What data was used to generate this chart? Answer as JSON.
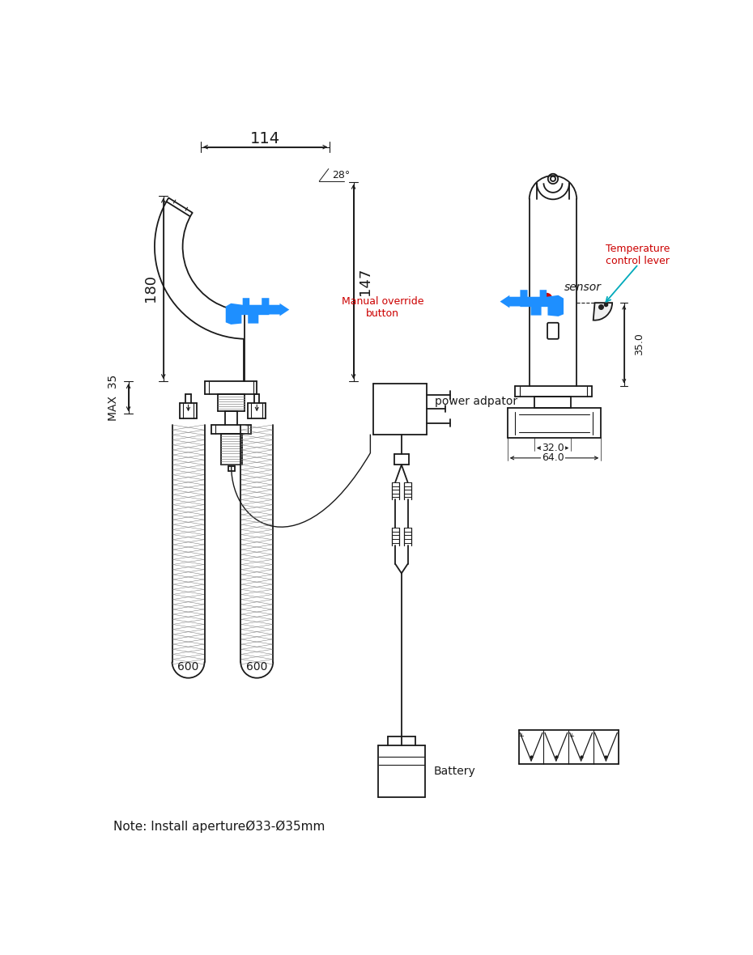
{
  "bg_color": "#ffffff",
  "line_color": "#1a1a1a",
  "blue_color": "#1e8fff",
  "red_color": "#cc0000",
  "cyan_color": "#00aabb",
  "gray_color": "#666666",
  "dim_114": "114",
  "dim_28": "28°",
  "dim_180": "180",
  "dim_147": "147",
  "dim_max35": "MAX  35",
  "dim_35": "35.0",
  "dim_32": "32.0",
  "dim_64": "64.0",
  "dim_600a": "600",
  "dim_600b": "600",
  "label_sensor": "sensor",
  "label_manual": "Manual override\nbutton",
  "label_temp": "Temperature\ncontrol lever",
  "label_power": "power adpator",
  "label_battery": "Battery",
  "label_note": "Note: Install apertureØ33-Ø35mm"
}
